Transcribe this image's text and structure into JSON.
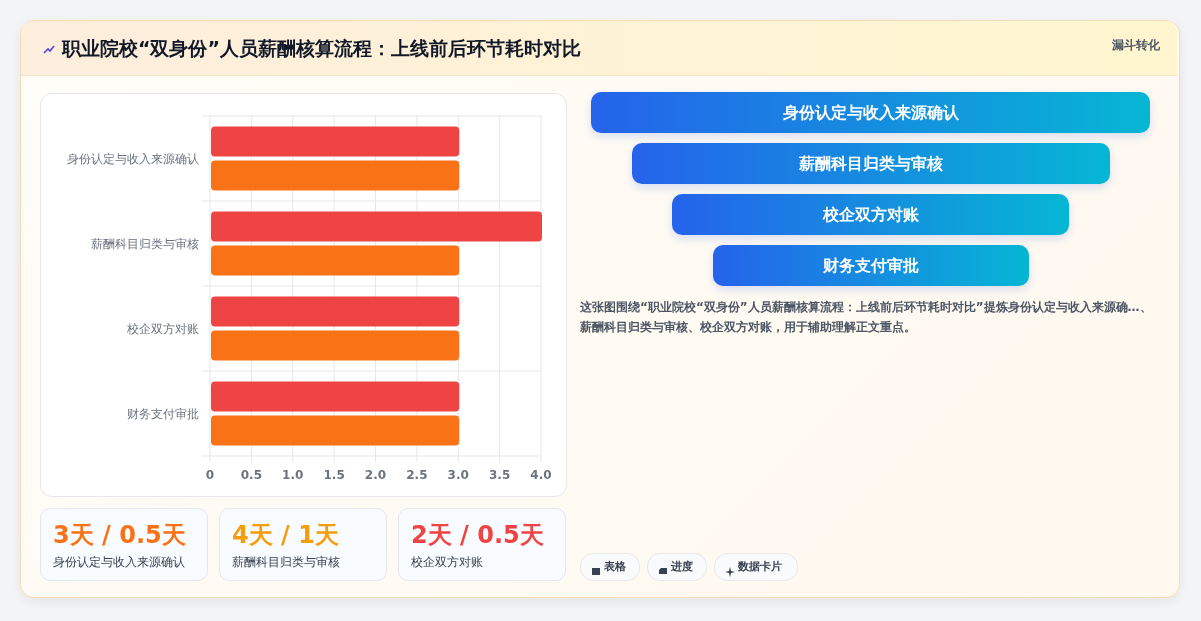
{
  "chart_data": [
    {
      "type": "bar",
      "orientation": "horizontal",
      "title": "职业院校“双身份”人员薪酬核算流程：上线前后环节耗时对比",
      "annotations": [
        "漏斗转化"
      ],
      "categories": [
        "身份认定与收入来源确认",
        "薪酬科目归类与审核",
        "校企双方对账",
        "财务支付审批"
      ],
      "series": [
        {
          "color": "#ef4444",
          "values": [
            3,
            4,
            3,
            3
          ]
        },
        {
          "color": "#f97316",
          "values": [
            3,
            3,
            3,
            3
          ]
        }
      ],
      "xlim": [
        0,
        4
      ],
      "xticks": [
        0,
        0.5,
        {
          "value": 1,
          "label": "1.0"
        },
        1.5,
        {
          "value": 2,
          "label": "2.0"
        },
        2.5,
        {
          "value": 3,
          "label": "3.0"
        },
        3.5,
        {
          "value": 4,
          "label": "4.0"
        }
      ],
      "grid": true
    },
    {
      "type": "other",
      "categories": [
        "身份认定与收入来源确认",
        "薪酬科目归类与审核",
        "校企双方对账",
        "财务支付审批"
      ],
      "colors": [
        "#2563eb",
        "#2563eb",
        "#2563eb",
        "#2563eb"
      ],
      "annotations": [
        "这张图围绕“职业院校“双身份”人员薪酬核算流程：上线前后环节耗时对比”提炼身份认定与收入来源确…、薪酬科目归类与审核、校企双方对账，用于辅助理解正文重点。"
      ]
    },
    {
      "type": "other",
      "categories": [
        "身份认定与收入来源确认",
        "薪酬科目归类与审核",
        "校企双方对账"
      ],
      "value_labels": [
        "3天 / 0.5天",
        "4天 / 1天",
        "2天 / 0.5天"
      ]
    },
    {
      "type": "other",
      "annotations": [
        "表格",
        "进度",
        "数据卡片"
      ]
    }
  ]
}
